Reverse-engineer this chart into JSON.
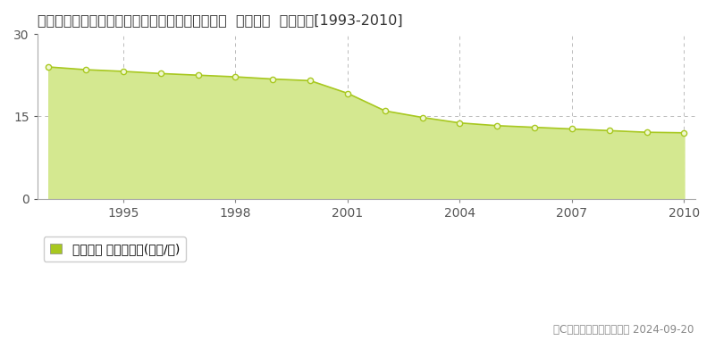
{
  "title": "愛知県知多郡南知多町大字豊浜字中之浦２５番外  公示地価  地価推移[1993-2010]",
  "years": [
    1993,
    1994,
    1995,
    1996,
    1997,
    1998,
    1999,
    2000,
    2001,
    2002,
    2003,
    2004,
    2005,
    2006,
    2007,
    2008,
    2009,
    2010
  ],
  "values": [
    24.0,
    23.5,
    23.2,
    22.8,
    22.5,
    22.2,
    21.8,
    21.5,
    19.2,
    16.0,
    14.8,
    13.8,
    13.3,
    13.0,
    12.7,
    12.4,
    12.1,
    12.0
  ],
  "ylim": [
    0,
    30
  ],
  "yticks": [
    0,
    15,
    30
  ],
  "xticks": [
    1995,
    1998,
    2001,
    2004,
    2007,
    2010
  ],
  "line_color": "#a8c820",
  "fill_color": "#d4e890",
  "marker_face_color": "#f0f8d0",
  "marker_edge_color": "#a8c820",
  "bg_color": "#ffffff",
  "grid_color": "#bbbbbb",
  "legend_label": "公示地価 平均坪単価(万円/坪)",
  "legend_marker_color": "#a8c820",
  "copyright_text": "（C）土地価格ドットコム 2024-09-20",
  "title_fontsize": 11.5,
  "tick_fontsize": 10,
  "legend_fontsize": 10
}
